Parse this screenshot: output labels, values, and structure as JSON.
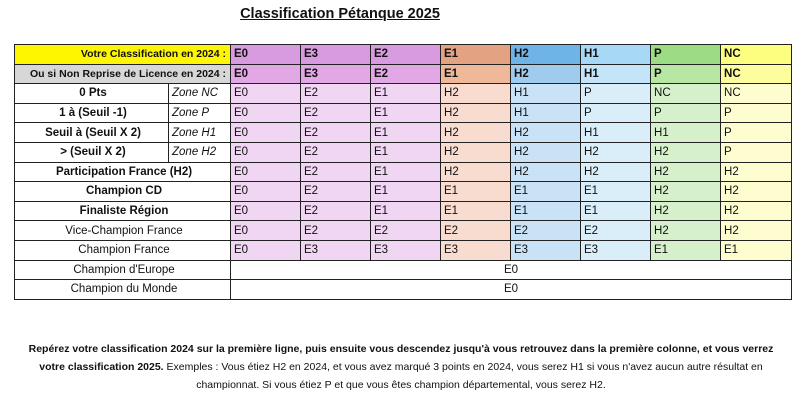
{
  "title": "Classification Pétanque 2025",
  "colors": {
    "head1": [
      "#d89be0",
      "#d89be0",
      "#d89be0",
      "#e3a383",
      "#6fb4e6",
      "#a7d8f5",
      "#9ddb84",
      "#fdfd80"
    ],
    "head2": [
      "#e2a8e6",
      "#e2a8e6",
      "#e2a8e6",
      "#efb899",
      "#9fcbed",
      "#c4e5f7",
      "#b8e6a3",
      "#fdfd9e"
    ],
    "body": [
      "#f0d6f2",
      "#f0d6f2",
      "#f0d6f2",
      "#f8dcd0",
      "#c9e2f6",
      "#d9eef9",
      "#d6f0cb",
      "#fdfdd0"
    ]
  },
  "header_rows": [
    {
      "label": "Votre Classification en 2024 :",
      "cells": [
        "E0",
        "E3",
        "E2",
        "E1",
        "H2",
        "H1",
        "P",
        "NC"
      ]
    },
    {
      "label": "Ou si Non Reprise de Licence en 2024 :",
      "cells": [
        "E0",
        "E3",
        "E2",
        "E1",
        "H2",
        "H1",
        "P",
        "NC"
      ]
    }
  ],
  "zone_rows": [
    {
      "label": "0 Pts",
      "zone": "Zone NC",
      "cells": [
        "E0",
        "E2",
        "E1",
        "H2",
        "H1",
        "P",
        "NC",
        "NC"
      ]
    },
    {
      "label": "1 à (Seuil -1)",
      "zone": "Zone P",
      "cells": [
        "E0",
        "E2",
        "E1",
        "H2",
        "H1",
        "P",
        "P",
        "P"
      ]
    },
    {
      "label": "Seuil à (Seuil X 2)",
      "zone": "Zone H1",
      "cells": [
        "E0",
        "E2",
        "E1",
        "H2",
        "H2",
        "H1",
        "H1",
        "P"
      ]
    },
    {
      "label": "> (Seuil X 2)",
      "zone": "Zone H2",
      "cells": [
        "E0",
        "E2",
        "E1",
        "H2",
        "H2",
        "H2",
        "H2",
        "P"
      ]
    }
  ],
  "rows": [
    {
      "label": "Participation France (H2)",
      "bold": true,
      "cells": [
        "E0",
        "E2",
        "E1",
        "H2",
        "H2",
        "H2",
        "H2",
        "H2"
      ]
    },
    {
      "label": "Champion CD",
      "bold": true,
      "cells": [
        "E0",
        "E2",
        "E1",
        "E1",
        "E1",
        "E1",
        "H2",
        "H2"
      ]
    },
    {
      "label": "Finaliste Région",
      "bold": true,
      "cells": [
        "E0",
        "E2",
        "E1",
        "E1",
        "E1",
        "E1",
        "H2",
        "H2"
      ]
    },
    {
      "label": "Vice-Champion France",
      "bold": false,
      "cells": [
        "E0",
        "E2",
        "E2",
        "E2",
        "E2",
        "E2",
        "H2",
        "H2"
      ]
    },
    {
      "label": "Champion France",
      "bold": false,
      "cells": [
        "E0",
        "E3",
        "E3",
        "E3",
        "E3",
        "E3",
        "E1",
        "E1"
      ]
    }
  ],
  "merged_rows": [
    {
      "label": "Champion d'Europe",
      "value": "E0"
    },
    {
      "label": "Champion du Monde",
      "value": "E0"
    }
  ],
  "footer": {
    "bold_text": "Repérez votre classification 2024 sur la première ligne, puis ensuite vous descendez jusqu'à vous retrouvez dans la première colonne, et vous verrez votre classification 2025.",
    "normal_text": " Exemples : Vous étiez H2 en 2024, et vous avez marqué 3 points en 2024, vous serez H1 si vous n'avez aucun autre résultat en championnat. Si vous étiez P et que vous êtes champion départemental, vous serez H2."
  }
}
